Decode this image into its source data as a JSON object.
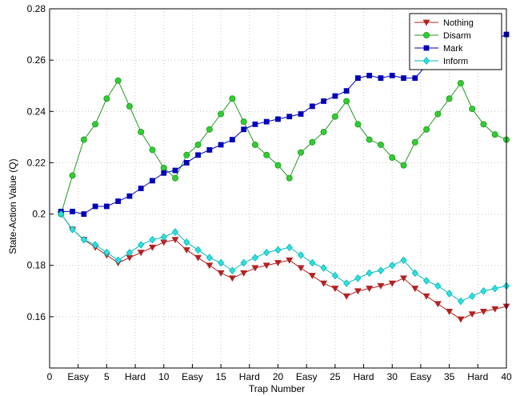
{
  "chart_data": {
    "type": "line",
    "xlabel": "Trap Number",
    "ylabel": "State-Action Value (Q)",
    "xlim": [
      0,
      40
    ],
    "ylim": [
      0.14,
      0.28
    ],
    "grid": true,
    "legend_position": "top-right",
    "x_ticks": [
      {
        "value": 0,
        "label": "0"
      },
      {
        "value": 2.5,
        "label": "Easy"
      },
      {
        "value": 5,
        "label": "5"
      },
      {
        "value": 7.5,
        "label": "Hard"
      },
      {
        "value": 10,
        "label": "10"
      },
      {
        "value": 12.5,
        "label": "Easy"
      },
      {
        "value": 15,
        "label": "15"
      },
      {
        "value": 17.5,
        "label": "Hard"
      },
      {
        "value": 20,
        "label": "20"
      },
      {
        "value": 22.5,
        "label": "Easy"
      },
      {
        "value": 25,
        "label": "25"
      },
      {
        "value": 27.5,
        "label": "Hard"
      },
      {
        "value": 30,
        "label": "30"
      },
      {
        "value": 32.5,
        "label": "Easy"
      },
      {
        "value": 35,
        "label": "35"
      },
      {
        "value": 37.5,
        "label": "Hard"
      },
      {
        "value": 40,
        "label": "40"
      }
    ],
    "y_ticks": [
      {
        "value": 0.16,
        "label": "0.16"
      },
      {
        "value": 0.18,
        "label": "0.18"
      },
      {
        "value": 0.2,
        "label": "0.2"
      },
      {
        "value": 0.22,
        "label": "0.22"
      },
      {
        "value": 0.24,
        "label": "0.24"
      },
      {
        "value": 0.26,
        "label": "0.26"
      },
      {
        "value": 0.28,
        "label": "0.28"
      }
    ],
    "x": [
      1,
      2,
      3,
      4,
      5,
      6,
      7,
      8,
      9,
      10,
      11,
      12,
      13,
      14,
      15,
      16,
      17,
      18,
      19,
      20,
      21,
      22,
      23,
      24,
      25,
      26,
      27,
      28,
      29,
      30,
      31,
      32,
      33,
      34,
      35,
      36,
      37,
      38,
      39,
      40
    ],
    "series": [
      {
        "name": "Nothing",
        "color": "#b22222",
        "marker": "triangle-down",
        "values": [
          0.2,
          0.194,
          0.19,
          0.187,
          0.184,
          0.181,
          0.183,
          0.185,
          0.187,
          0.189,
          0.19,
          0.186,
          0.183,
          0.18,
          0.177,
          0.175,
          0.177,
          0.179,
          0.18,
          0.181,
          0.182,
          0.179,
          0.176,
          0.173,
          0.171,
          0.168,
          0.17,
          0.171,
          0.172,
          0.173,
          0.175,
          0.171,
          0.168,
          0.165,
          0.162,
          0.159,
          0.161,
          0.162,
          0.163,
          0.164
        ]
      },
      {
        "name": "Disarm",
        "color": "#1f9a1f",
        "fill": "#33cc33",
        "marker": "circle",
        "values": [
          0.2,
          0.215,
          0.229,
          0.235,
          0.245,
          0.252,
          0.242,
          0.232,
          0.225,
          0.218,
          0.214,
          0.223,
          0.227,
          0.233,
          0.239,
          0.245,
          0.236,
          0.227,
          0.223,
          0.219,
          0.214,
          0.224,
          0.228,
          0.232,
          0.238,
          0.244,
          0.235,
          0.229,
          0.227,
          0.222,
          0.219,
          0.228,
          0.233,
          0.239,
          0.245,
          0.251,
          0.241,
          0.235,
          0.231,
          0.229
        ]
      },
      {
        "name": "Mark",
        "color": "#0000bb",
        "marker": "square",
        "values": [
          0.201,
          0.201,
          0.2,
          0.203,
          0.203,
          0.205,
          0.207,
          0.21,
          0.213,
          0.216,
          0.217,
          0.22,
          0.223,
          0.225,
          0.227,
          0.229,
          0.233,
          0.235,
          0.236,
          0.237,
          0.238,
          0.239,
          0.242,
          0.244,
          0.246,
          0.248,
          0.253,
          0.254,
          0.253,
          0.254,
          0.253,
          0.253,
          0.258,
          0.259,
          0.26,
          0.264,
          0.266,
          0.267,
          0.268,
          0.27
        ]
      },
      {
        "name": "Inform",
        "color": "#00bbbb",
        "fill": "#33dddd",
        "marker": "diamond",
        "values": [
          0.2,
          0.194,
          0.19,
          0.188,
          0.185,
          0.182,
          0.185,
          0.188,
          0.19,
          0.191,
          0.193,
          0.189,
          0.186,
          0.183,
          0.181,
          0.178,
          0.181,
          0.183,
          0.185,
          0.186,
          0.187,
          0.184,
          0.181,
          0.179,
          0.176,
          0.173,
          0.175,
          0.177,
          0.178,
          0.18,
          0.182,
          0.177,
          0.174,
          0.172,
          0.169,
          0.166,
          0.168,
          0.17,
          0.171,
          0.172
        ]
      }
    ]
  }
}
